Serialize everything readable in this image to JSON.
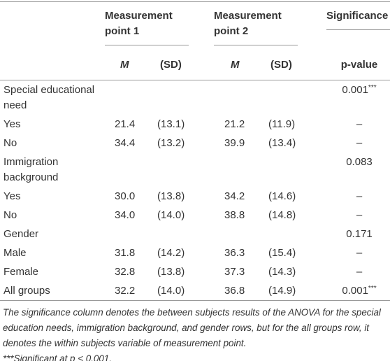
{
  "table": {
    "header": {
      "groups": [
        "Measurement point 1",
        "Measurement point 2",
        "Significance"
      ],
      "subheaders": [
        "M",
        "(SD)",
        "M",
        "(SD)",
        "p-value"
      ]
    },
    "rows": [
      {
        "label": "Special educational need",
        "significance": "0.001",
        "significance_note": "***"
      },
      {
        "label": "Yes",
        "cells": [
          "21.4",
          "(13.1)",
          "21.2",
          "(11.9)",
          "–"
        ]
      },
      {
        "label": "No",
        "cells": [
          "34.4",
          "(13.2)",
          "39.9",
          "(13.4)",
          "–"
        ]
      },
      {
        "label": "Immigration background",
        "significance": "0.083"
      },
      {
        "label": "Yes",
        "cells": [
          "30.0",
          "(13.8)",
          "34.2",
          "(14.6)",
          "–"
        ]
      },
      {
        "label": "No",
        "cells": [
          "34.0",
          "(14.0)",
          "38.8",
          "(14.8)",
          "–"
        ]
      },
      {
        "label": "Gender",
        "significance": "0.171"
      },
      {
        "label": "Male",
        "cells": [
          "31.8",
          "(14.2)",
          "36.3",
          "(15.4)",
          "–"
        ]
      },
      {
        "label": "Female",
        "cells": [
          "32.8",
          "(13.8)",
          "37.3",
          "(14.3)",
          "–"
        ]
      },
      {
        "label": "All groups",
        "cells": [
          "32.2",
          "(14.0)",
          "36.8",
          "(14.9)",
          "0.001"
        ],
        "significance_note": "***"
      }
    ],
    "footnotes": [
      "The significance column denotes the between subjects results of the ANOVA for the special education needs, immigration background, and gender rows, but for the all groups row, it denotes the within subjects variable of measurement point.",
      "***Significant at p < 0.001."
    ]
  }
}
